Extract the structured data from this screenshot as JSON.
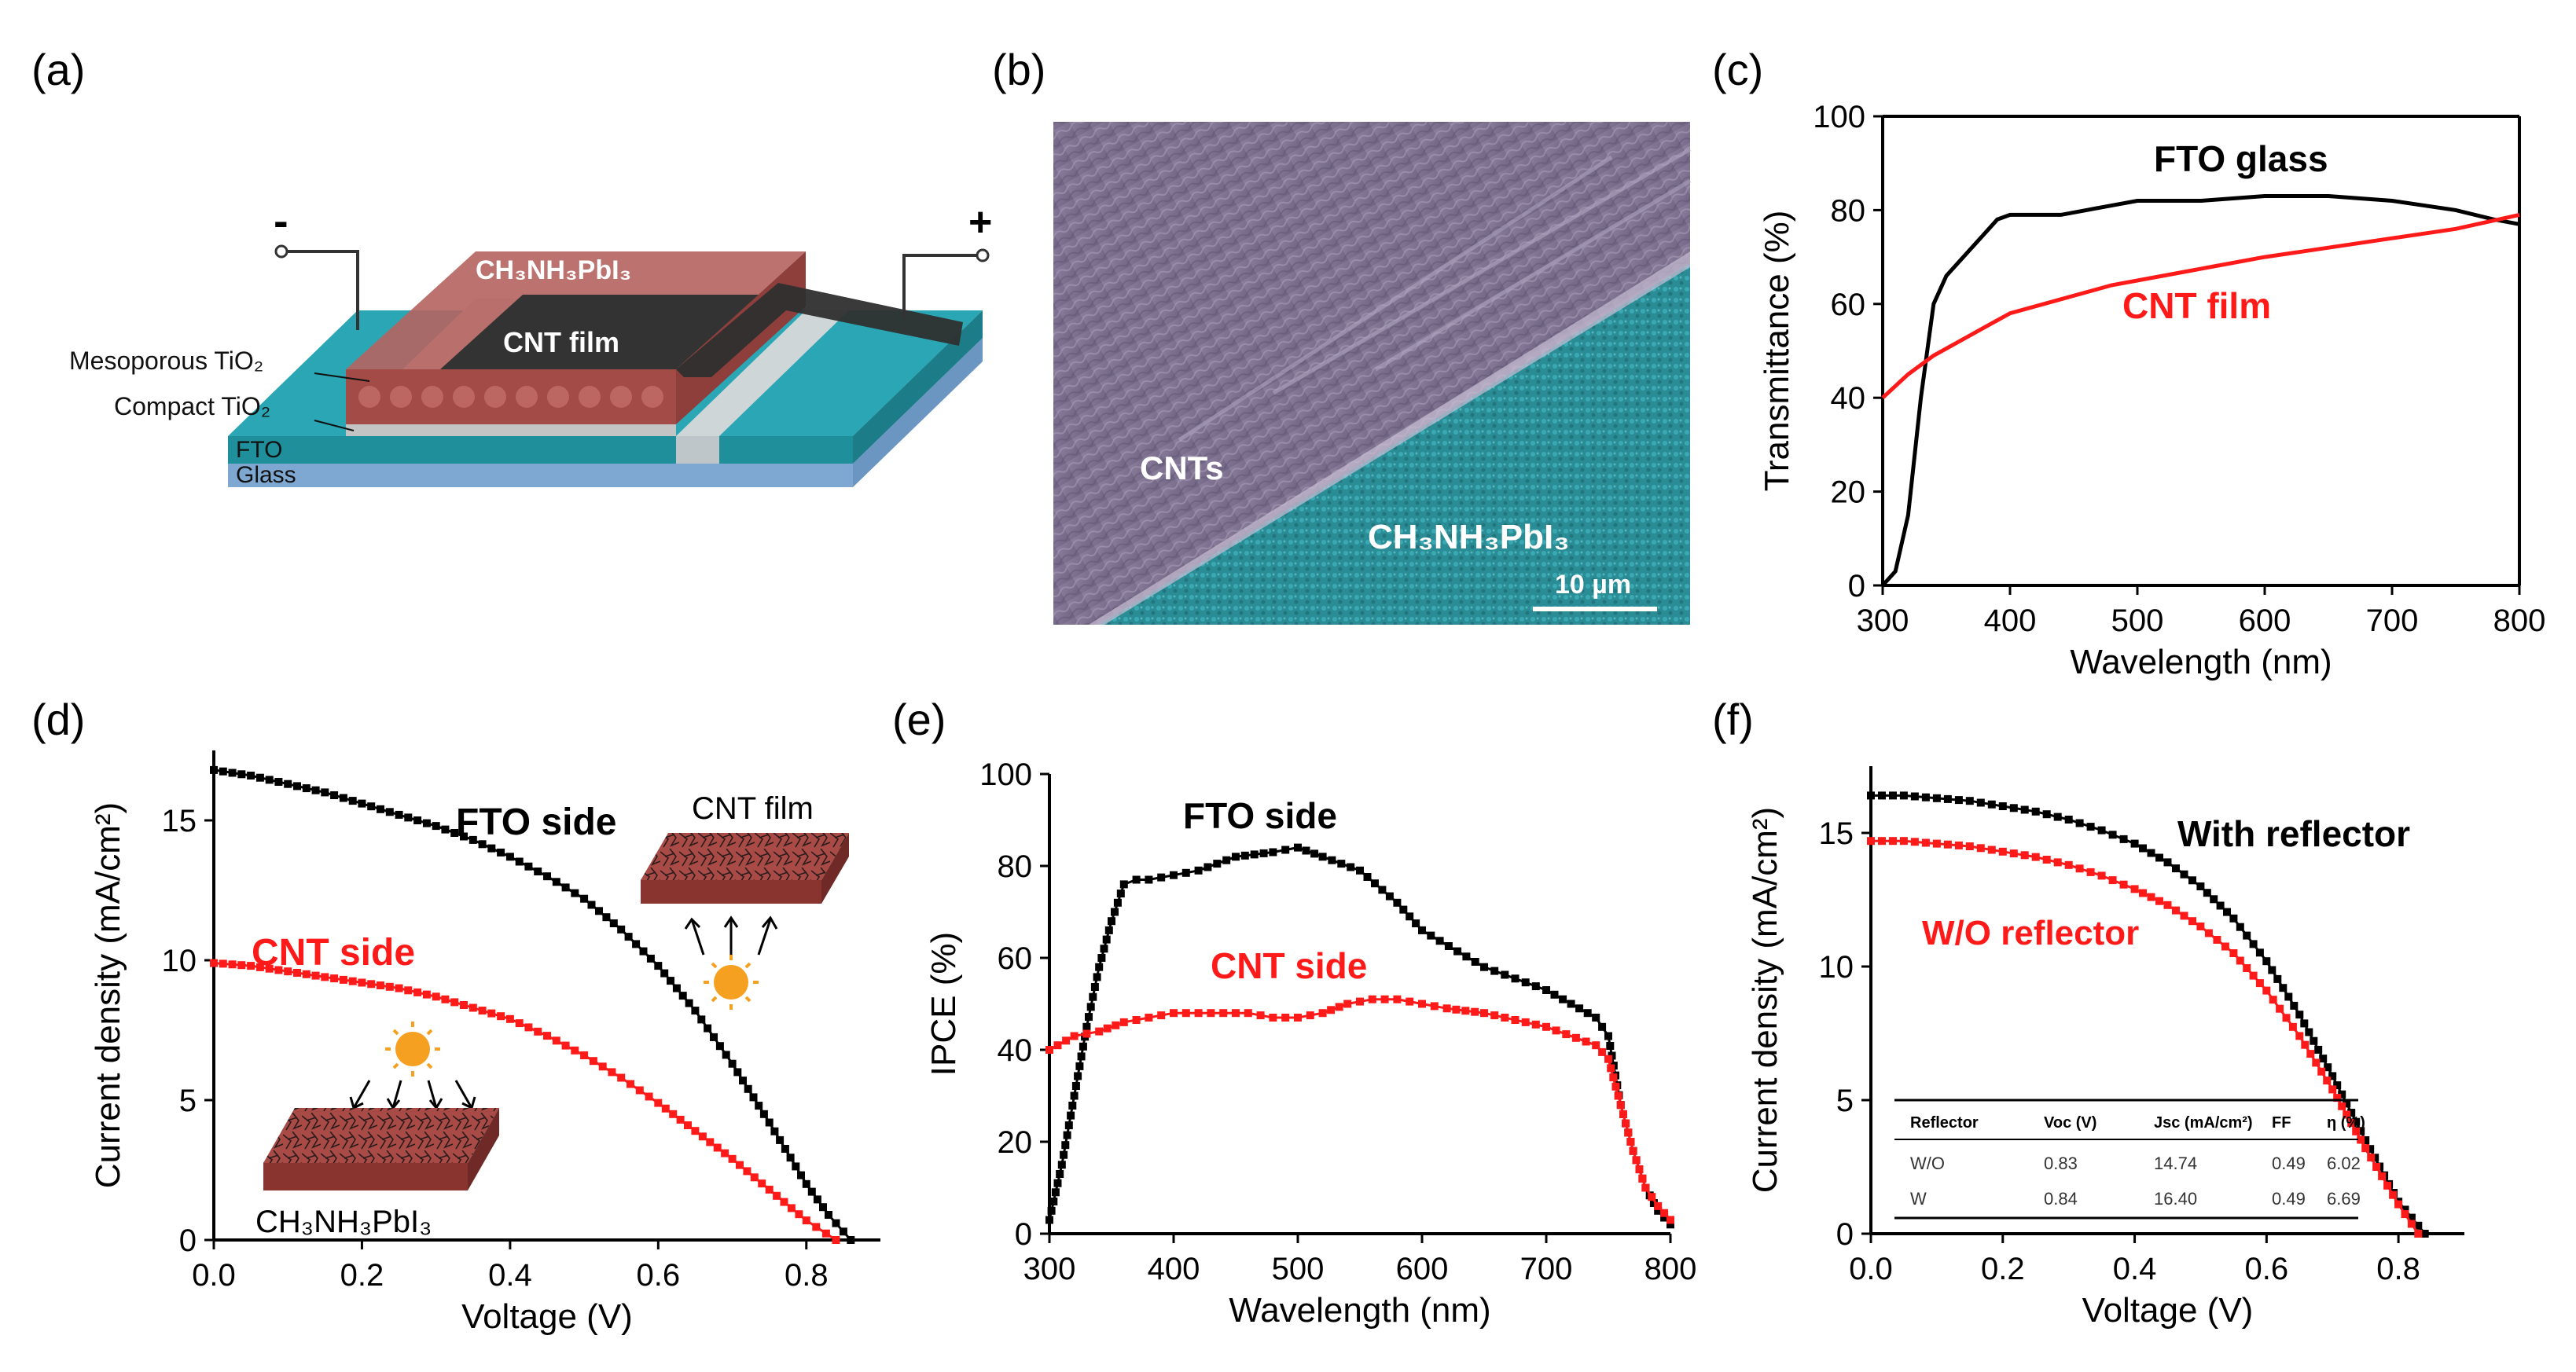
{
  "colors": {
    "black": "#000000",
    "red": "#ff1a1a",
    "teal": "#2aa6b5",
    "glass": "#8fb8dd",
    "perov": "#a84a46",
    "cnt": "#333333",
    "sun": "#f5a020"
  },
  "panels": {
    "a": {
      "label": "(a)",
      "minus": "-",
      "plus": "+",
      "layers": {
        "perovskite": "CH₃NH₃PbI₃",
        "cnt_film": "CNT film",
        "meso": "Mesoporous TiO₂",
        "compact": "Compact TiO₂",
        "fto": "FTO",
        "glass": "Glass"
      }
    },
    "b": {
      "label": "(b)",
      "cnts": "CNTs",
      "perovskite": "CH₃NH₃PbI₃",
      "scale": "10 µm"
    }
  },
  "chart_data": [
    {
      "id": "c",
      "label": "(c)",
      "type": "line",
      "xlabel": "Wavelength (nm)",
      "ylabel": "Transmittance (%)",
      "xlim": [
        300,
        800
      ],
      "ylim": [
        0,
        100
      ],
      "xticks": [
        "300",
        "400",
        "500",
        "600",
        "700",
        "800"
      ],
      "yticks": [
        "0",
        "20",
        "40",
        "60",
        "80",
        "100"
      ],
      "series": [
        {
          "name": "FTO glass",
          "color": "#000000",
          "markers": false,
          "x": [
            300,
            310,
            320,
            330,
            340,
            350,
            360,
            370,
            380,
            390,
            400,
            410,
            420,
            440,
            460,
            480,
            500,
            550,
            600,
            650,
            700,
            750,
            780,
            800
          ],
          "y": [
            0,
            3,
            15,
            40,
            60,
            66,
            69,
            72,
            75,
            78,
            79,
            79,
            79,
            79,
            80,
            81,
            82,
            82,
            83,
            83,
            82,
            80,
            78,
            77
          ]
        },
        {
          "name": "CNT film",
          "color": "#ff1a1a",
          "markers": false,
          "x": [
            300,
            320,
            340,
            360,
            380,
            400,
            440,
            480,
            520,
            560,
            600,
            650,
            700,
            750,
            800
          ],
          "y": [
            40,
            45,
            49,
            52,
            55,
            58,
            61,
            64,
            66,
            68,
            70,
            72,
            74,
            76,
            79
          ]
        }
      ],
      "annotations": [
        {
          "text": "FTO glass",
          "color": "#000000"
        },
        {
          "text": "CNT film",
          "color": "#ff1a1a"
        }
      ]
    },
    {
      "id": "d",
      "label": "(d)",
      "type": "line",
      "xlabel": "Voltage (V)",
      "ylabel": "Current density (mA/cm²)",
      "xlim": [
        0,
        0.9
      ],
      "ylim": [
        0,
        17.5
      ],
      "xticks": [
        "0.0",
        "0.2",
        "0.4",
        "0.6",
        "0.8"
      ],
      "yticks": [
        "0",
        "5",
        "10",
        "15"
      ],
      "series": [
        {
          "name": "FTO side",
          "color": "#000000",
          "markers": true,
          "x": [
            0,
            0.05,
            0.1,
            0.15,
            0.2,
            0.25,
            0.3,
            0.35,
            0.4,
            0.45,
            0.5,
            0.55,
            0.6,
            0.65,
            0.7,
            0.75,
            0.8,
            0.83,
            0.86
          ],
          "y": [
            16.8,
            16.6,
            16.3,
            16.0,
            15.6,
            15.2,
            14.8,
            14.3,
            13.7,
            13.0,
            12.2,
            11.1,
            9.8,
            8.2,
            6.3,
            4.2,
            2.0,
            0.9,
            0
          ]
        },
        {
          "name": "CNT side",
          "color": "#ff1a1a",
          "markers": true,
          "x": [
            0,
            0.05,
            0.1,
            0.15,
            0.2,
            0.25,
            0.3,
            0.35,
            0.4,
            0.45,
            0.5,
            0.55,
            0.6,
            0.65,
            0.7,
            0.75,
            0.8,
            0.84
          ],
          "y": [
            9.9,
            9.8,
            9.6,
            9.4,
            9.2,
            9.0,
            8.7,
            8.3,
            7.9,
            7.3,
            6.6,
            5.8,
            4.9,
            3.9,
            2.9,
            1.8,
            0.7,
            0
          ]
        }
      ],
      "annotations": [
        {
          "text": "FTO side",
          "color": "#000000"
        },
        {
          "text": "CNT side",
          "color": "#ff1a1a"
        },
        {
          "text": "CNT film",
          "color": "#000000"
        },
        {
          "text": "CH₃NH₃PbI₃",
          "color": "#000000"
        }
      ]
    },
    {
      "id": "e",
      "label": "(e)",
      "type": "line",
      "xlabel": "Wavelength (nm)",
      "ylabel": "IPCE (%)",
      "xlim": [
        300,
        800
      ],
      "ylim": [
        0,
        100
      ],
      "xticks": [
        "300",
        "400",
        "500",
        "600",
        "700",
        "800"
      ],
      "yticks": [
        "0",
        "20",
        "40",
        "60",
        "80",
        "100"
      ],
      "series": [
        {
          "name": "FTO side",
          "color": "#000000",
          "markers": true,
          "x": [
            300,
            310,
            320,
            330,
            340,
            350,
            360,
            370,
            380,
            400,
            420,
            450,
            480,
            500,
            520,
            550,
            580,
            600,
            650,
            700,
            720,
            740,
            750,
            760,
            770,
            780,
            790,
            800
          ],
          "y": [
            3,
            15,
            30,
            45,
            58,
            68,
            76,
            77,
            77,
            78,
            79,
            82,
            83,
            84,
            82,
            79,
            72,
            66,
            58,
            53,
            50,
            47,
            43,
            28,
            18,
            10,
            5,
            2
          ]
        },
        {
          "name": "CNT side",
          "color": "#ff1a1a",
          "markers": true,
          "x": [
            300,
            320,
            340,
            360,
            380,
            400,
            420,
            440,
            460,
            480,
            500,
            520,
            540,
            560,
            580,
            600,
            620,
            650,
            700,
            740,
            750,
            760,
            770,
            780,
            790,
            800
          ],
          "y": [
            40,
            43,
            44,
            46,
            47,
            48,
            48,
            48,
            48,
            47,
            47,
            48,
            50,
            51,
            51,
            50,
            49,
            48,
            45,
            41,
            38,
            28,
            18,
            10,
            6,
            3
          ]
        }
      ],
      "annotations": [
        {
          "text": "FTO side",
          "color": "#000000"
        },
        {
          "text": "CNT side",
          "color": "#ff1a1a"
        }
      ]
    },
    {
      "id": "f",
      "label": "(f)",
      "type": "line",
      "xlabel": "Voltage (V)",
      "ylabel": "Current density (mA/cm²)",
      "xlim": [
        0,
        0.9
      ],
      "ylim": [
        0,
        17.5
      ],
      "xticks": [
        "0.0",
        "0.2",
        "0.4",
        "0.6",
        "0.8"
      ],
      "yticks": [
        "0",
        "5",
        "10",
        "15"
      ],
      "series": [
        {
          "name": "With reflector",
          "color": "#000000",
          "markers": true,
          "x": [
            0,
            0.05,
            0.1,
            0.15,
            0.2,
            0.25,
            0.3,
            0.35,
            0.4,
            0.45,
            0.5,
            0.55,
            0.6,
            0.65,
            0.7,
            0.75,
            0.8,
            0.84
          ],
          "y": [
            16.4,
            16.4,
            16.3,
            16.2,
            16.0,
            15.8,
            15.5,
            15.1,
            14.6,
            13.9,
            13.0,
            11.8,
            10.2,
            8.2,
            5.9,
            3.5,
            1.2,
            0
          ]
        },
        {
          "name": "W/O reflector",
          "color": "#ff1a1a",
          "markers": true,
          "x": [
            0,
            0.05,
            0.1,
            0.15,
            0.2,
            0.25,
            0.3,
            0.35,
            0.4,
            0.45,
            0.5,
            0.55,
            0.6,
            0.65,
            0.7,
            0.75,
            0.8,
            0.83
          ],
          "y": [
            14.7,
            14.7,
            14.6,
            14.5,
            14.3,
            14.1,
            13.8,
            13.4,
            12.9,
            12.3,
            11.5,
            10.5,
            9.1,
            7.4,
            5.4,
            3.2,
            1.1,
            0
          ]
        }
      ],
      "annotations": [
        {
          "text": "With reflector",
          "color": "#000000"
        },
        {
          "text": "W/O reflector",
          "color": "#ff1a1a"
        }
      ],
      "table": {
        "headers": [
          "Reflector",
          "Voc (V)",
          "Jsc (mA/cm²)",
          "FF",
          "η (%)"
        ],
        "rows": [
          [
            "W/O",
            "0.83",
            "14.74",
            "0.49",
            "6.02"
          ],
          [
            "W",
            "0.84",
            "16.40",
            "0.49",
            "6.69"
          ]
        ]
      }
    }
  ]
}
